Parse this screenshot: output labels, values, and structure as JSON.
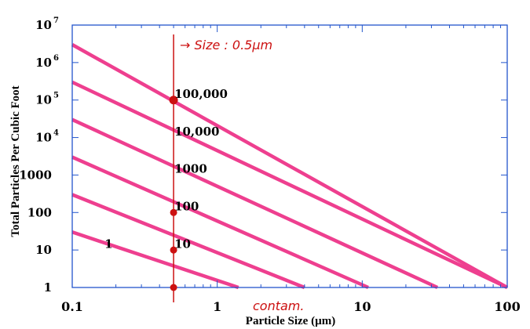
{
  "chart_data": {
    "type": "line",
    "xlabel": "Particle Size (µm)",
    "ylabel": "Total Particles Per Cubic Foot",
    "x_scale": "log",
    "y_scale": "log",
    "xlim": [
      0.1,
      100
    ],
    "ylim": [
      1,
      10000000
    ],
    "x_ticks": [
      {
        "value": 0.1,
        "label": "0.1"
      },
      {
        "value": 1,
        "label": "1"
      },
      {
        "value": 10,
        "label": "10"
      },
      {
        "value": 100,
        "label": "100"
      }
    ],
    "y_ticks": [
      {
        "value": 1,
        "label": "1",
        "exp": ""
      },
      {
        "value": 10,
        "label": "10",
        "exp": ""
      },
      {
        "value": 100,
        "label": "100",
        "exp": ""
      },
      {
        "value": 1000,
        "label": "1000",
        "exp": ""
      },
      {
        "value": 10000,
        "label": "10",
        "exp": "4"
      },
      {
        "value": 100000,
        "label": "10",
        "exp": "5"
      },
      {
        "value": 1000000,
        "label": "10",
        "exp": "6"
      },
      {
        "value": 10000000,
        "label": "10",
        "exp": "7"
      }
    ],
    "series": [
      {
        "label": "1",
        "x": [
          0.1,
          1.4
        ],
        "y": [
          30,
          1
        ]
      },
      {
        "label": "10",
        "x": [
          0.1,
          4
        ],
        "y": [
          300,
          1
        ]
      },
      {
        "label": "100",
        "x": [
          0.1,
          11
        ],
        "y": [
          3000,
          1
        ]
      },
      {
        "label": "1000",
        "x": [
          0.1,
          33
        ],
        "y": [
          30000,
          1
        ]
      },
      {
        "label": "10,000",
        "x": [
          0.1,
          100
        ],
        "y": [
          300000,
          1
        ]
      },
      {
        "label": "100,000",
        "x": [
          0.1,
          100
        ],
        "y": [
          3000000,
          1
        ]
      }
    ],
    "reference_line": {
      "x": 0.5
    },
    "marked_points": [
      {
        "x": 0.5,
        "y": 1
      },
      {
        "x": 0.5,
        "y": 10
      },
      {
        "x": 0.5,
        "y": 100
      },
      {
        "x": 0.5,
        "y": 100000
      }
    ],
    "annotations": {
      "size_note": "→ Size : 0.5µm",
      "contam_note": "contam."
    },
    "colors": {
      "series": "#ee3f8f",
      "reference": "#cc1111",
      "axis": "#2255cc"
    },
    "grid": false
  }
}
